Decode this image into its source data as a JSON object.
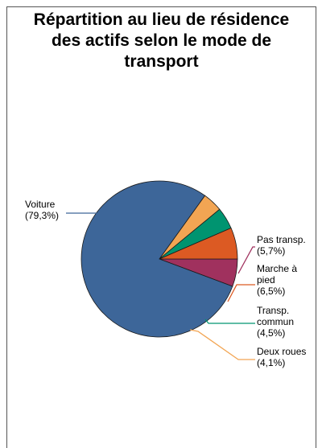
{
  "chart_data": {
    "type": "pie",
    "title_lines": [
      "Répartition au lieu de résidence",
      "des actifs selon le mode de",
      "transport"
    ],
    "categories": [
      "Voiture",
      "Pas transp.",
      "Marche à pied",
      "Transp. commun",
      "Deux roues"
    ],
    "values": [
      79.3,
      5.7,
      6.5,
      4.5,
      4.1
    ],
    "colors": [
      "#3d6699",
      "#a0315e",
      "#dc5a23",
      "#009470",
      "#f2a553"
    ],
    "labels": [
      {
        "lines": [
          "Voiture",
          "(79,3%)"
        ]
      },
      {
        "lines": [
          "Pas transp.",
          "(5,7%)"
        ]
      },
      {
        "lines": [
          "Marche à",
          "pied",
          "(6,5%)"
        ]
      },
      {
        "lines": [
          "Transp.",
          "commun",
          "(4,5%)"
        ]
      },
      {
        "lines": [
          "Deux roues",
          "(4,1%)"
        ]
      }
    ]
  }
}
